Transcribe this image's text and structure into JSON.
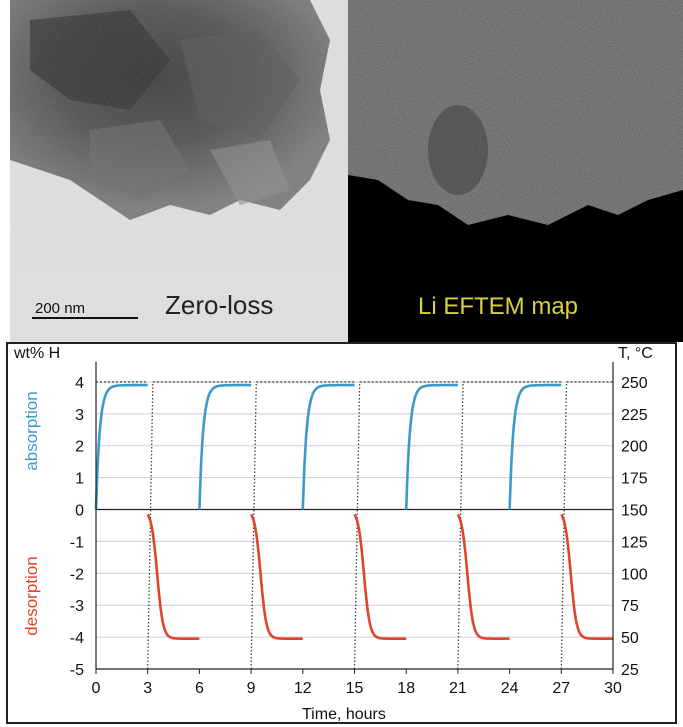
{
  "images": {
    "zero_loss": {
      "label": "Zero-loss",
      "scale_bar_label": "200  nm"
    },
    "li_map": {
      "label": "Li  EFTEM map"
    }
  },
  "colors": {
    "absorption": "#3a9bc9",
    "desorption": "#e0452b",
    "temperature": "#444444",
    "map_label": "#d8d040"
  },
  "chart_data": {
    "type": "line",
    "title": "",
    "xlabel": "Time, hours",
    "ylabel_left": "wt% H",
    "ylabel_right": "T, °C",
    "xlim": [
      0,
      30
    ],
    "ylim_left": [
      -5,
      4.5
    ],
    "ylim_right": [
      25,
      262.5
    ],
    "x_ticks": [
      0,
      3,
      6,
      9,
      12,
      15,
      18,
      21,
      24,
      27,
      30
    ],
    "y_ticks_left": [
      4,
      3,
      2,
      1,
      0,
      -1,
      -2,
      -3,
      -4,
      -5
    ],
    "y_ticks_right": [
      250,
      225,
      200,
      175,
      150,
      125,
      100,
      75,
      50,
      25
    ],
    "grid": true,
    "side_labels": {
      "absorption": "absorption",
      "desorption": "desorption"
    },
    "absorption_cycles": [
      {
        "start": 0,
        "end": 3,
        "plateau": 3.9
      },
      {
        "start": 6,
        "end": 9,
        "plateau": 3.9
      },
      {
        "start": 12,
        "end": 15,
        "plateau": 3.9
      },
      {
        "start": 18,
        "end": 21,
        "plateau": 3.9
      },
      {
        "start": 24,
        "end": 27,
        "plateau": 3.9
      }
    ],
    "desorption_cycles": [
      {
        "start": 3,
        "end": 6,
        "plateau": -4.05
      },
      {
        "start": 9,
        "end": 12,
        "plateau": -4.05
      },
      {
        "start": 15,
        "end": 18,
        "plateau": -4.05
      },
      {
        "start": 21,
        "end": 24,
        "plateau": -4.05
      },
      {
        "start": 27,
        "end": 30,
        "plateau": -4.05
      }
    ],
    "temperature_transitions": [
      {
        "x_start": 3.0,
        "x_end": 3.3
      },
      {
        "x_start": 9.0,
        "x_end": 9.3
      },
      {
        "x_start": 15.0,
        "x_end": 15.3
      },
      {
        "x_start": 21.0,
        "x_end": 21.3
      },
      {
        "x_start": 27.0,
        "x_end": 27.3
      }
    ],
    "temperature_plateau": 250
  }
}
